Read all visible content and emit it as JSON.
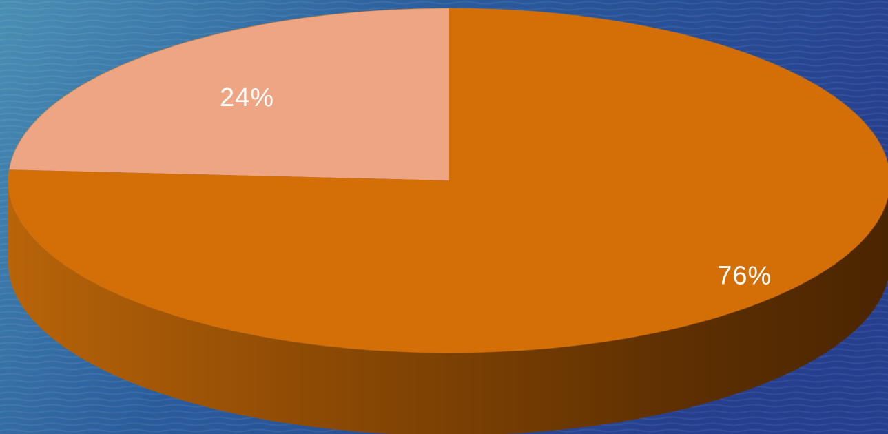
{
  "chart_data": {
    "type": "pie",
    "title": "",
    "categories": [
      "",
      ""
    ],
    "values": [
      24,
      76
    ],
    "labels": [
      "24%",
      "76%"
    ],
    "colors": [
      "#eea583",
      "#d46e07"
    ],
    "style": "3d"
  },
  "background": {
    "colors": [
      "#4a8fb4",
      "#2a5c9c",
      "#263f8e"
    ]
  }
}
